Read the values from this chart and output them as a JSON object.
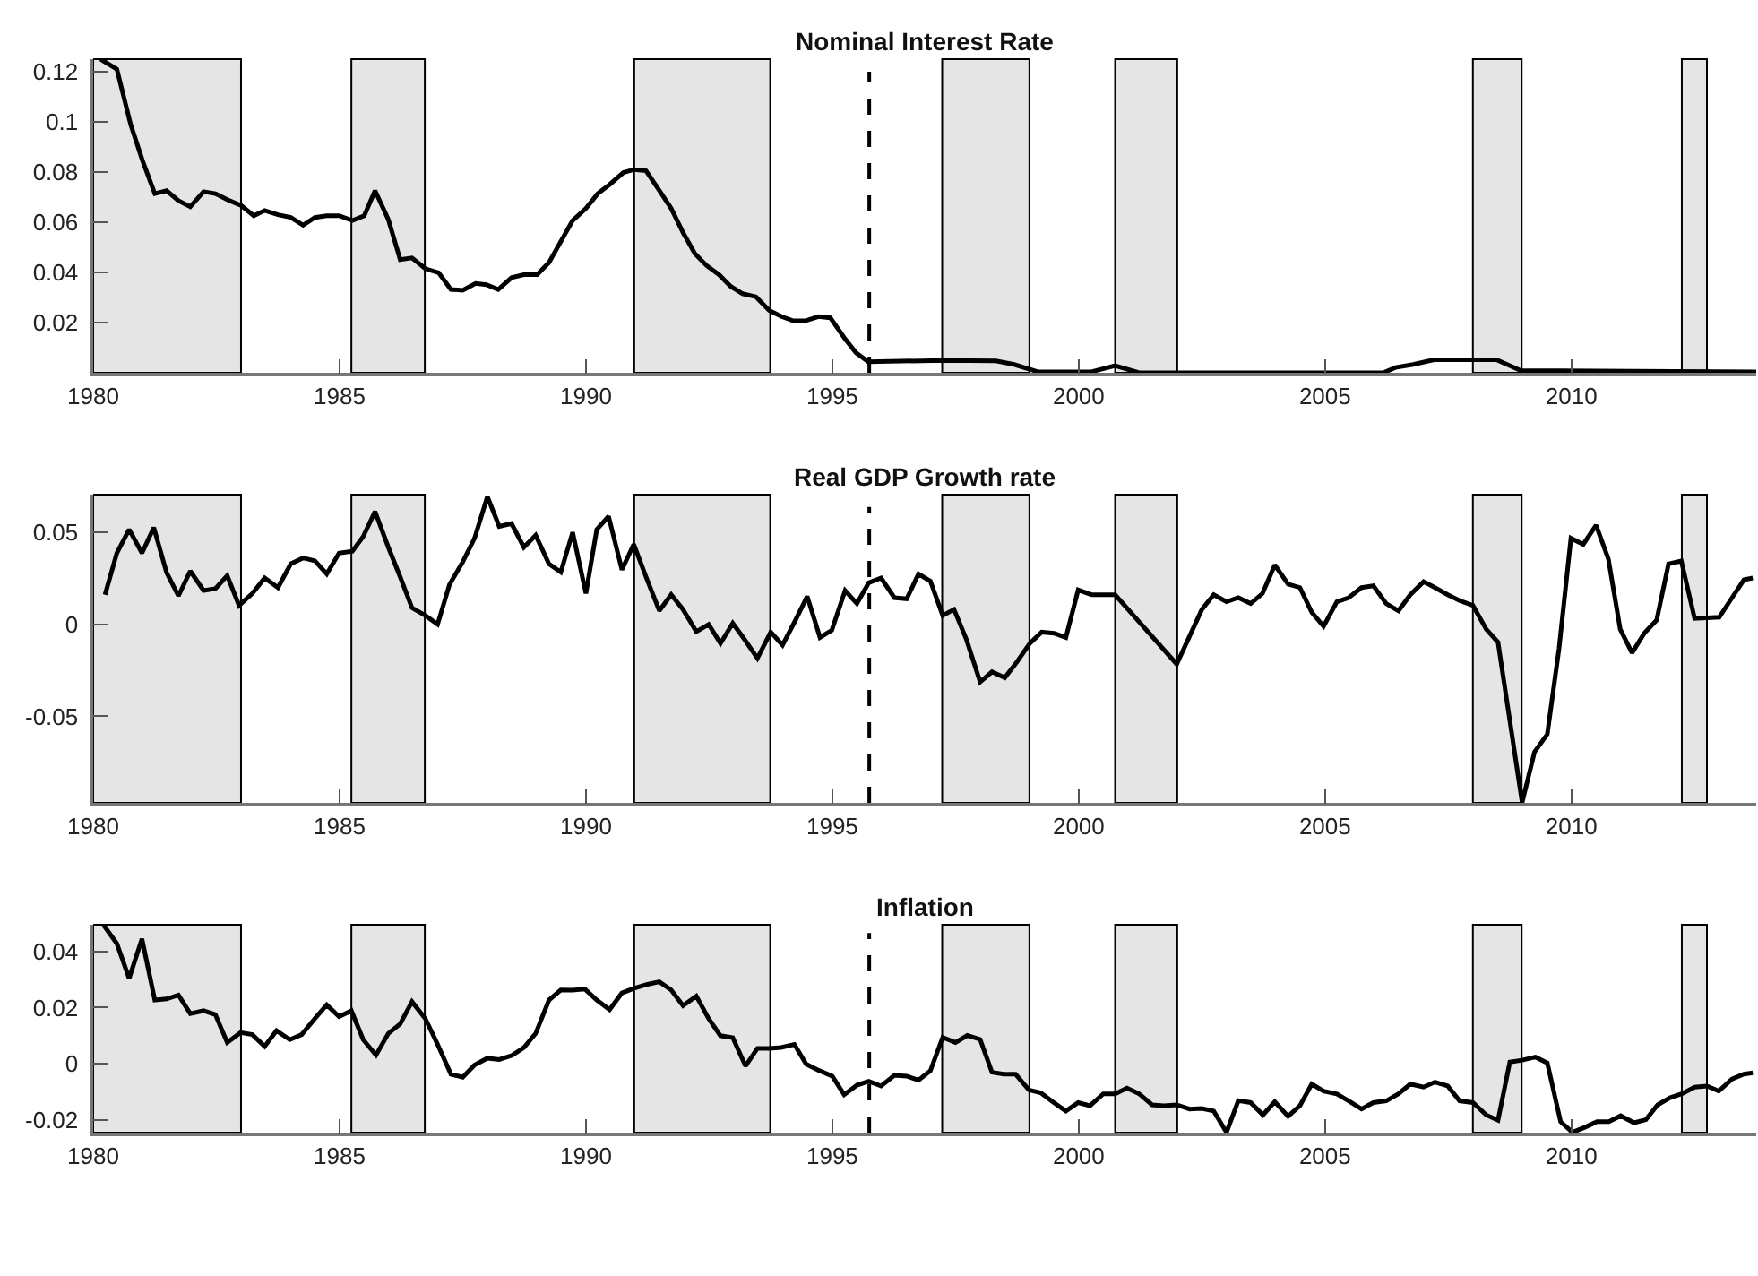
{
  "chart_data": [
    {
      "type": "line",
      "title": "Nominal Interest Rate",
      "grid": false,
      "xlim": [
        1980,
        2013.75
      ],
      "xticks": [
        1980,
        1985,
        1990,
        1995,
        2000,
        2005,
        2010
      ],
      "ylim": [
        0,
        0.125
      ],
      "yticks": [
        0.02,
        0.04,
        0.06,
        0.08,
        {
          "value": 0.1,
          "label": "0.1"
        },
        0.12
      ],
      "bands": [
        {
          "axis": "x",
          "from": 1980,
          "to": 1983.0,
          "color": "#e5e5e5"
        },
        {
          "axis": "x",
          "from": 1985.24,
          "to": 1986.73,
          "color": "#e5e5e5"
        },
        {
          "axis": "x",
          "from": 1990.98,
          "to": 1993.74,
          "color": "#e5e5e5"
        },
        {
          "axis": "x",
          "from": 1997.23,
          "to": 1999.0,
          "color": "#e5e5e5"
        },
        {
          "axis": "x",
          "from": 2000.74,
          "to": 2002.0,
          "color": "#e5e5e5"
        },
        {
          "axis": "x",
          "from": 2008.0,
          "to": 2008.99,
          "color": "#e5e5e5"
        },
        {
          "axis": "x",
          "from": 2012.24,
          "to": 2012.75,
          "color": "#e5e5e5"
        }
      ],
      "ref_lines": [
        {
          "axis": "x",
          "value": 1995.75,
          "color": "#000000",
          "line_style": "dashed"
        }
      ],
      "series": [
        {
          "color": "#000000",
          "x": [
            1980.15,
            1980.48,
            1980.76,
            1981.0,
            1981.25,
            1981.49,
            1981.73,
            1981.97,
            1982.24,
            1982.48,
            1982.72,
            1983.0,
            1983.26,
            1983.48,
            1983.75,
            1984.01,
            1984.26,
            1984.5,
            1984.74,
            1984.99,
            1985.26,
            1985.5,
            1985.72,
            1985.99,
            1986.23,
            1986.47,
            1986.74,
            1987.01,
            1987.26,
            1987.5,
            1987.76,
            1987.98,
            1988.22,
            1988.49,
            1988.74,
            1989.01,
            1989.25,
            1989.49,
            1989.73,
            1990.0,
            1990.24,
            1990.48,
            1990.76,
            1990.98,
            1991.22,
            1991.49,
            1991.73,
            1991.97,
            1992.21,
            1992.45,
            1992.7,
            1992.94,
            1993.18,
            1993.45,
            1993.72,
            1993.97,
            1994.21,
            1994.45,
            1994.72,
            1994.96,
            1995.24,
            1995.48,
            1995.73,
            1997.24,
            1998.32,
            1998.69,
            1999.17,
            2000.26,
            2000.74,
            2001.23,
            2006.18,
            2006.43,
            2006.79,
            2007.21,
            2008.48,
            2008.97,
            2013.75
          ],
          "values": [
            0.125,
            0.121,
            0.099,
            0.0846,
            0.0714,
            0.0726,
            0.0686,
            0.0662,
            0.0722,
            0.0714,
            0.069,
            0.0667,
            0.0626,
            0.0647,
            0.063,
            0.0619,
            0.0588,
            0.0619,
            0.0626,
            0.0626,
            0.0607,
            0.0626,
            0.0726,
            0.0611,
            0.0451,
            0.0458,
            0.0415,
            0.0399,
            0.0332,
            0.0329,
            0.0356,
            0.0351,
            0.0332,
            0.0379,
            0.0391,
            0.0391,
            0.0439,
            0.0523,
            0.0607,
            0.0655,
            0.0714,
            0.075,
            0.0798,
            0.081,
            0.0805,
            0.0726,
            0.0655,
            0.0559,
            0.0475,
            0.0427,
            0.0391,
            0.0344,
            0.0315,
            0.0303,
            0.0248,
            0.0224,
            0.0207,
            0.0207,
            0.0224,
            0.0219,
            0.014,
            0.008,
            0.0044,
            0.0049,
            0.0047,
            0.0033,
            0.0004,
            0.0004,
            0.0028,
            0.0,
            0.0,
            0.0021,
            0.0033,
            0.0052,
            0.0052,
            0.0009,
            0.0004
          ]
        }
      ]
    },
    {
      "type": "line",
      "title": "Real GDP Growth rate",
      "grid": false,
      "xlim": [
        1980,
        2013.75
      ],
      "xticks": [
        1980,
        1985,
        1990,
        1995,
        2000,
        2005,
        2010
      ],
      "ylim": [
        -0.097,
        0.0705
      ],
      "yticks": [
        -0.05,
        0,
        0.05
      ],
      "bands": [
        {
          "axis": "x",
          "from": 1980,
          "to": 1983.0,
          "color": "#e5e5e5"
        },
        {
          "axis": "x",
          "from": 1985.24,
          "to": 1986.73,
          "color": "#e5e5e5"
        },
        {
          "axis": "x",
          "from": 1990.98,
          "to": 1993.74,
          "color": "#e5e5e5"
        },
        {
          "axis": "x",
          "from": 1997.23,
          "to": 1999.0,
          "color": "#e5e5e5"
        },
        {
          "axis": "x",
          "from": 2000.74,
          "to": 2002.0,
          "color": "#e5e5e5"
        },
        {
          "axis": "x",
          "from": 2008.0,
          "to": 2008.99,
          "color": "#e5e5e5"
        },
        {
          "axis": "x",
          "from": 2012.24,
          "to": 2012.75,
          "color": "#e5e5e5"
        }
      ],
      "ref_lines": [
        {
          "axis": "x",
          "value": 1995.75,
          "color": "#000000",
          "line_style": "dashed"
        }
      ],
      "series": [
        {
          "color": "#000000",
          "x": [
            1980.24,
            1980.48,
            1980.73,
            1980.99,
            1981.23,
            1981.49,
            1981.73,
            1981.97,
            1982.24,
            1982.48,
            1982.72,
            1982.96,
            1983.23,
            1983.48,
            1983.75,
            1984.01,
            1984.26,
            1984.5,
            1984.74,
            1984.99,
            1985.26,
            1985.48,
            1985.72,
            1985.99,
            1986.23,
            1986.47,
            1986.74,
            1986.99,
            1987.23,
            1987.5,
            1987.74,
            1988.0,
            1988.24,
            1988.49,
            1988.74,
            1988.98,
            1989.25,
            1989.49,
            1989.73,
            1990.0,
            1990.22,
            1990.46,
            1990.73,
            1990.97,
            1991.22,
            1991.49,
            1991.73,
            1991.97,
            1992.24,
            1992.49,
            1992.73,
            1992.98,
            1993.24,
            1993.48,
            1993.75,
            1993.99,
            1994.24,
            1994.49,
            1994.75,
            1994.99,
            1995.26,
            1995.5,
            1995.74,
            1995.99,
            1996.26,
            1996.51,
            1996.75,
            1996.99,
            1997.24,
            1997.47,
            1997.72,
            1998.0,
            1998.24,
            1998.5,
            1998.75,
            1999.01,
            1999.25,
            1999.5,
            1999.74,
            1999.99,
            2000.26,
            2000.74,
            2001.99,
            2002.5,
            2002.74,
            2003.0,
            2003.24,
            2003.49,
            2003.73,
            2003.98,
            2004.25,
            2004.49,
            2004.73,
            2004.97,
            2005.24,
            2005.48,
            2005.74,
            2005.98,
            2006.24,
            2006.49,
            2006.73,
            2007.0,
            2007.23,
            2007.49,
            2007.73,
            2008.0,
            2008.27,
            2008.51,
            2009.0,
            2009.25,
            2009.51,
            2009.75,
            2009.99,
            2010.24,
            2010.5,
            2010.75,
            2010.99,
            2011.23,
            2011.48,
            2011.73,
            2011.97,
            2012.23,
            2012.5,
            2013.0,
            2013.26,
            2013.5,
            2013.68
          ],
          "values": [
            0.0161,
            0.0387,
            0.0516,
            0.0387,
            0.0526,
            0.0281,
            0.0155,
            0.029,
            0.0184,
            0.0194,
            0.0265,
            0.0103,
            0.0168,
            0.0252,
            0.02,
            0.0329,
            0.0361,
            0.0345,
            0.0274,
            0.0387,
            0.0397,
            0.0477,
            0.0613,
            0.0419,
            0.0258,
            0.009,
            0.0048,
            0,
            0.0216,
            0.0339,
            0.0468,
            0.0694,
            0.0532,
            0.0548,
            0.0419,
            0.0484,
            0.0329,
            0.0284,
            0.05,
            0.0168,
            0.0516,
            0.0587,
            0.0297,
            0.0435,
            0.0258,
            0.0074,
            0.0161,
            0.0081,
            -0.0039,
            0,
            -0.0103,
            0.0006,
            -0.009,
            -0.0184,
            -0.0042,
            -0.0113,
            0.0016,
            0.0152,
            -0.0071,
            -0.0032,
            0.0184,
            0.0113,
            0.0226,
            0.0252,
            0.0145,
            0.0139,
            0.0274,
            0.0235,
            0.0048,
            0.0081,
            -0.0081,
            -0.0313,
            -0.0258,
            -0.029,
            -0.0203,
            -0.0103,
            -0.0042,
            -0.0048,
            -0.0071,
            0.0187,
            0.0161,
            0.0161,
            -0.0216,
            0.0081,
            0.0161,
            0.0123,
            0.0145,
            0.0113,
            0.0168,
            0.0323,
            0.0219,
            0.02,
            0.0065,
            -0.001,
            0.0123,
            0.0145,
            0.02,
            0.021,
            0.0113,
            0.0074,
            0.0161,
            0.0232,
            0.02,
            0.0161,
            0.0129,
            0.0103,
            -0.0026,
            -0.0097,
            -0.0968,
            -0.0694,
            -0.0597,
            -0.0129,
            0.0468,
            0.0435,
            0.0539,
            0.0355,
            -0.0026,
            -0.0155,
            -0.0048,
            0.0023,
            0.0329,
            0.0345,
            0.0032,
            0.0039,
            0.0145,
            0.0242,
            0.0252
          ]
        }
      ]
    },
    {
      "type": "line",
      "title": "Inflation",
      "grid": false,
      "xlim": [
        1980,
        2013.75
      ],
      "xticks": [
        1980,
        1985,
        1990,
        1995,
        2000,
        2005,
        2010
      ],
      "ylim": [
        -0.0245,
        0.0495
      ],
      "yticks": [
        -0.02,
        0,
        0.02,
        0.04
      ],
      "bands": [
        {
          "axis": "x",
          "from": 1980,
          "to": 1983.0,
          "color": "#e5e5e5"
        },
        {
          "axis": "x",
          "from": 1985.24,
          "to": 1986.73,
          "color": "#e5e5e5"
        },
        {
          "axis": "x",
          "from": 1990.98,
          "to": 1993.74,
          "color": "#e5e5e5"
        },
        {
          "axis": "x",
          "from": 1997.23,
          "to": 1999.0,
          "color": "#e5e5e5"
        },
        {
          "axis": "x",
          "from": 2000.74,
          "to": 2002.0,
          "color": "#e5e5e5"
        },
        {
          "axis": "x",
          "from": 2008.0,
          "to": 2008.99,
          "color": "#e5e5e5"
        },
        {
          "axis": "x",
          "from": 2012.24,
          "to": 2012.75,
          "color": "#e5e5e5"
        }
      ],
      "ref_lines": [
        {
          "axis": "x",
          "value": 1995.75,
          "color": "#000000",
          "line_style": "dashed"
        }
      ],
      "series": [
        {
          "color": "#000000",
          "x": [
            1980.21,
            1980.48,
            1980.73,
            1980.99,
            1981.25,
            1981.49,
            1981.73,
            1981.97,
            1982.24,
            1982.48,
            1982.72,
            1982.99,
            1983.23,
            1983.48,
            1983.72,
            1983.99,
            1984.23,
            1984.5,
            1984.74,
            1984.99,
            1985.24,
            1985.48,
            1985.74,
            1985.99,
            1986.23,
            1986.47,
            1986.74,
            1986.99,
            1987.26,
            1987.5,
            1987.74,
            1988.0,
            1988.24,
            1988.5,
            1988.74,
            1988.98,
            1989.25,
            1989.49,
            1989.73,
            1989.98,
            1990.22,
            1990.48,
            1990.73,
            1990.98,
            1991.25,
            1991.49,
            1991.73,
            1991.97,
            1992.24,
            1992.49,
            1992.73,
            1992.98,
            1993.24,
            1993.48,
            1993.72,
            1993.96,
            1994.23,
            1994.47,
            1994.72,
            1995.0,
            1995.24,
            1995.5,
            1995.74,
            1995.99,
            1996.26,
            1996.51,
            1996.75,
            1996.99,
            1997.24,
            1997.5,
            1997.74,
            1998.0,
            1998.24,
            1998.48,
            1998.72,
            1998.99,
            1999.23,
            1999.47,
            1999.74,
            1999.99,
            2000.23,
            2000.5,
            2000.74,
            2000.98,
            2001.23,
            2001.49,
            2001.73,
            2001.99,
            2002.25,
            2002.5,
            2002.74,
            2003.0,
            2003.24,
            2003.49,
            2003.74,
            2003.98,
            2004.25,
            2004.49,
            2004.73,
            2004.97,
            2005.24,
            2005.48,
            2005.74,
            2005.98,
            2006.24,
            2006.49,
            2006.73,
            2007.0,
            2007.23,
            2007.49,
            2007.73,
            2008.0,
            2008.27,
            2008.51,
            2008.75,
            2009.0,
            2009.27,
            2009.51,
            2009.78,
            2010.02,
            2010.26,
            2010.52,
            2010.76,
            2011.0,
            2011.27,
            2011.51,
            2011.75,
            2012.0,
            2012.24,
            2012.5,
            2012.75,
            2012.99,
            2013.26,
            2013.5,
            2013.68
          ],
          "values": [
            0.0494,
            0.0428,
            0.0304,
            0.0445,
            0.0227,
            0.0231,
            0.0245,
            0.0179,
            0.0189,
            0.0175,
            0.0076,
            0.0111,
            0.0104,
            0.0062,
            0.0118,
            0.0086,
            0.0104,
            0.0161,
            0.021,
            0.0168,
            0.0189,
            0.0086,
            0.0031,
            0.0108,
            0.0142,
            0.0221,
            0.0161,
            0.0069,
            -0.0037,
            -0.0048,
            -0.0004,
            0.002,
            0.0015,
            0.003,
            0.0058,
            0.0108,
            0.0227,
            0.0263,
            0.0262,
            0.0266,
            0.0227,
            0.0193,
            0.0252,
            0.0269,
            0.0283,
            0.0292,
            0.0263,
            0.0207,
            0.0241,
            0.0161,
            0.01,
            0.0093,
            -0.0008,
            0.0055,
            0.0055,
            0.0058,
            0.0069,
            -0.0001,
            -0.0023,
            -0.0044,
            -0.011,
            -0.0076,
            -0.0062,
            -0.0079,
            -0.0041,
            -0.0044,
            -0.0058,
            -0.0025,
            0.0094,
            0.0076,
            0.0101,
            0.0087,
            -0.003,
            -0.0037,
            -0.0037,
            -0.0093,
            -0.0103,
            -0.0135,
            -0.0168,
            -0.0138,
            -0.0149,
            -0.0107,
            -0.0107,
            -0.0086,
            -0.0107,
            -0.0146,
            -0.0149,
            -0.0146,
            -0.0161,
            -0.0159,
            -0.0168,
            -0.0244,
            -0.0131,
            -0.0138,
            -0.0182,
            -0.0135,
            -0.0187,
            -0.0149,
            -0.0072,
            -0.0097,
            -0.0107,
            -0.0132,
            -0.0161,
            -0.0138,
            -0.0132,
            -0.0107,
            -0.0072,
            -0.0083,
            -0.0065,
            -0.0079,
            -0.0132,
            -0.0138,
            -0.0182,
            -0.0201,
            0.0006,
            0.0013,
            0.0024,
            0.0003,
            -0.0206,
            -0.0244,
            -0.0227,
            -0.0206,
            -0.0206,
            -0.0185,
            -0.021,
            -0.0199,
            -0.0146,
            -0.0121,
            -0.0107,
            -0.0083,
            -0.0079,
            -0.0097,
            -0.0054,
            -0.0037,
            -0.0032
          ]
        }
      ]
    }
  ]
}
